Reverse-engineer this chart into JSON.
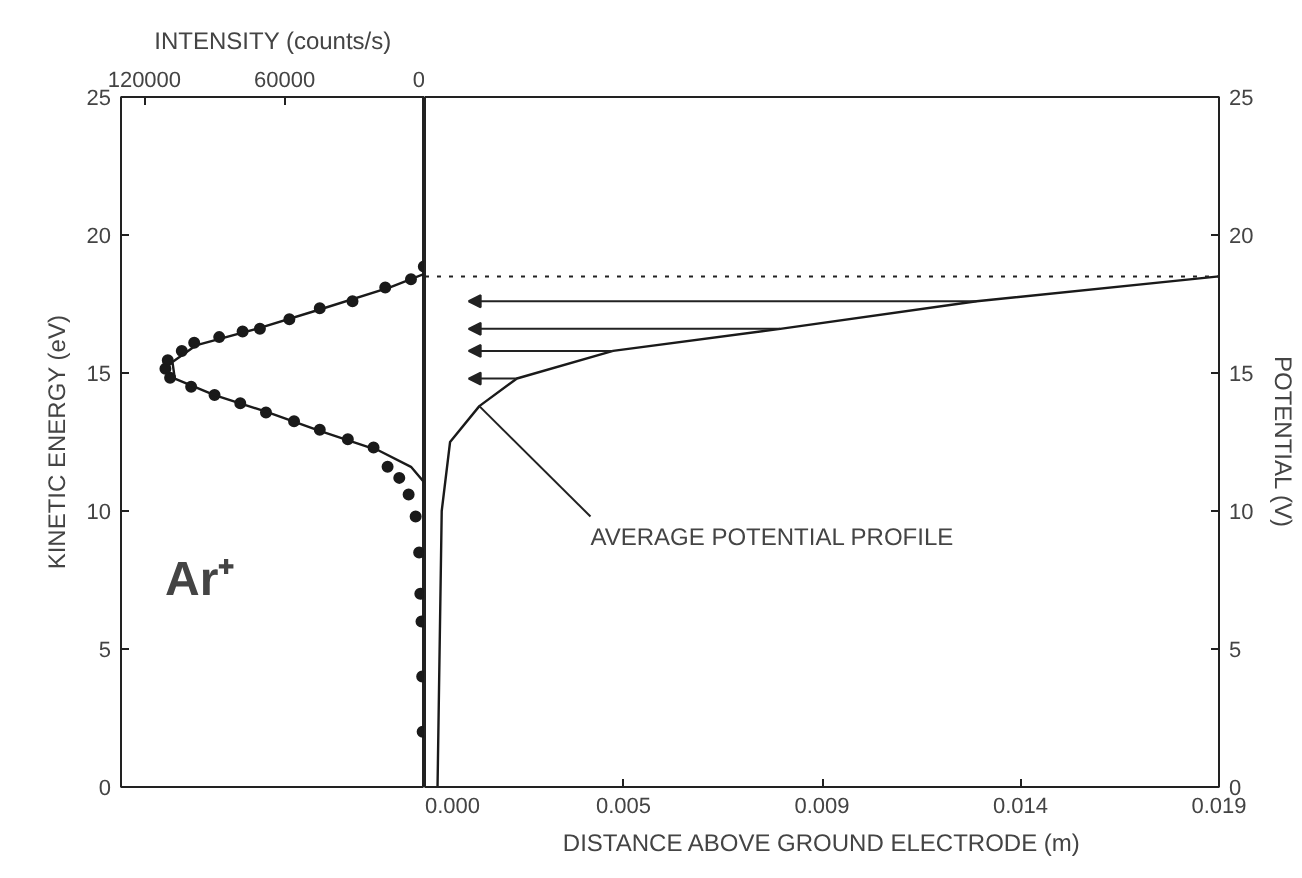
{
  "chart_data": [
    {
      "type": "scatter",
      "xlabel": "INTENSITY (counts/s)",
      "ylabel": "KINETIC ENERGY (eV)",
      "xlim": [
        130000,
        0
      ],
      "xticks": [
        120000,
        60000,
        0
      ],
      "ylim": [
        0,
        25
      ],
      "yticks": [
        0,
        5,
        10,
        15,
        20,
        25
      ],
      "grid": false,
      "annotations": [
        "Ar⁺"
      ],
      "series": [
        {
          "type": "scatter",
          "color": "#1a1a1a",
          "marker": "circle",
          "x": [
            1000,
            1200,
            1500,
            2000,
            2500,
            4000,
            7000,
            11000,
            16000,
            22000,
            33000,
            45000,
            56000,
            68000,
            79000,
            90000,
            100000,
            109000,
            111000,
            110000,
            104000,
            98700,
            88000,
            78000,
            70600,
            58000,
            45000,
            31000,
            17000,
            6000,
            500
          ],
          "values": [
            2.0,
            4.0,
            6.0,
            7.0,
            8.5,
            9.8,
            10.6,
            11.2,
            11.6,
            12.3,
            12.6,
            12.94,
            13.25,
            13.57,
            13.9,
            14.2,
            14.5,
            14.83,
            15.15,
            15.46,
            15.8,
            16.1,
            16.3,
            16.5,
            16.6,
            16.95,
            17.35,
            17.6,
            18.1,
            18.4,
            18.86
          ]
        },
        {
          "type": "line",
          "color": "#1a1a1a",
          "x": [
            0,
            0,
            6000,
            20000,
            45000,
            68000,
            90000,
            107000,
            108000,
            98000,
            72000,
            45000,
            15000,
            0,
            0
          ],
          "values": [
            0,
            11.0,
            11.6,
            12.2,
            12.9,
            13.6,
            14.2,
            14.8,
            15.4,
            16.0,
            16.6,
            17.3,
            18.1,
            18.6,
            25
          ]
        }
      ]
    },
    {
      "type": "line",
      "xlabel": "DISTANCE ABOVE GROUND ELECTRODE (m)",
      "ylabel": "POTENTIAL (V)",
      "xlim": [
        0,
        0.019
      ],
      "xticks": [
        {
          "value": 0,
          "label": "0.000"
        },
        {
          "value": 0.00475,
          "label": "0.005"
        },
        {
          "value": 0.0095,
          "label": "0.009"
        },
        {
          "value": 0.01425,
          "label": "0.014"
        },
        0.019
      ],
      "ylim": [
        0,
        25
      ],
      "yticks": [
        0,
        5,
        10,
        15,
        20,
        25
      ],
      "grid": false,
      "ref_lines": [
        {
          "axis": "y",
          "value": 18.5,
          "line_style": "dotted"
        }
      ],
      "annotations": [
        {
          "text": "AVERAGE POTENTIAL PROFILE",
          "x": 0.0013,
          "y": 13.8
        }
      ],
      "series": [
        {
          "color": "#1a1a1a",
          "x": [
            0.0003,
            0.0004,
            0.0006,
            0.0013,
            0.0022,
            0.0045,
            0.0085,
            0.0132,
            0.019
          ],
          "values": [
            0,
            10.0,
            12.5,
            13.8,
            14.8,
            15.8,
            16.6,
            17.6,
            18.5
          ]
        }
      ]
    }
  ]
}
